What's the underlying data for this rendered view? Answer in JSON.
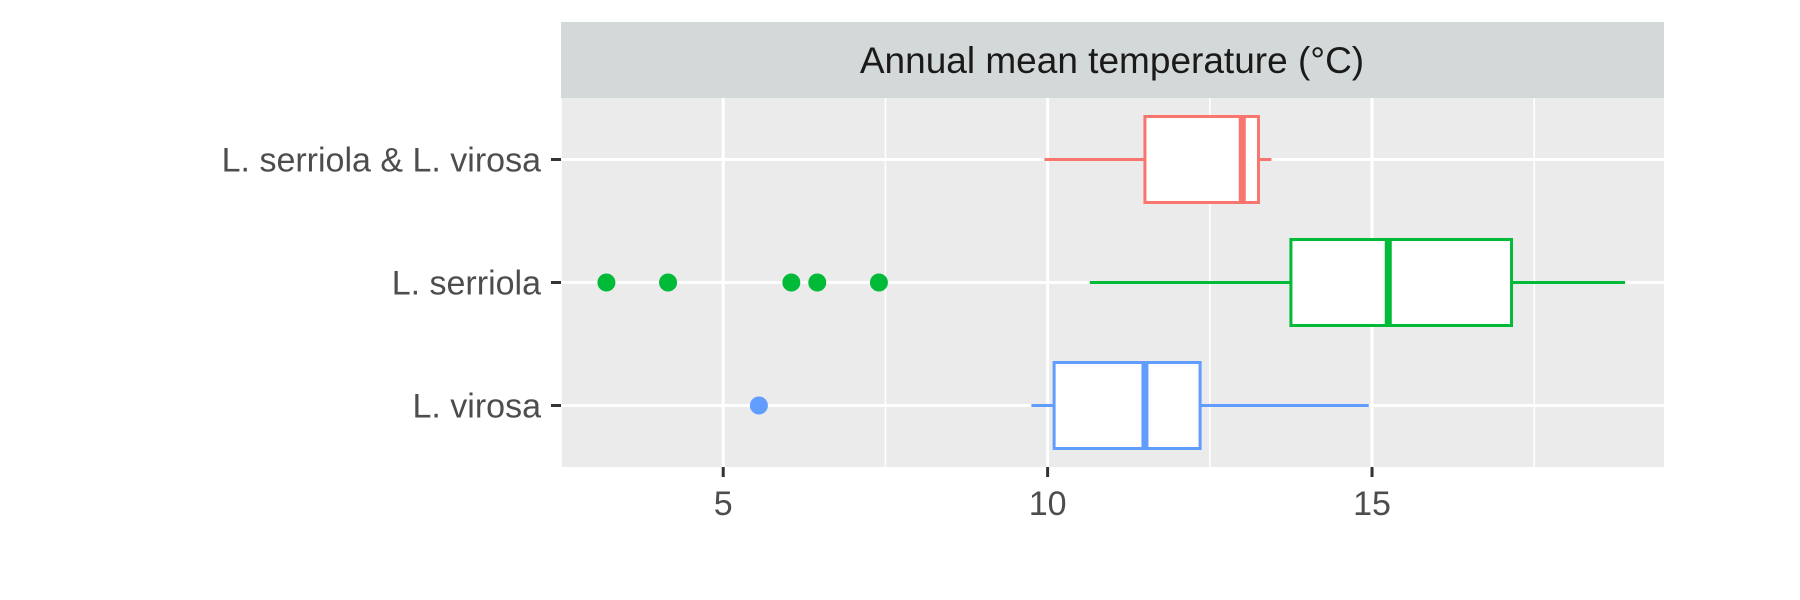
{
  "chart_data": {
    "type": "boxplot",
    "orientation": "horizontal",
    "title": "",
    "xlabel": "",
    "ylabel": "",
    "facet_strip": "Annual mean temperature (°C)",
    "xlim": [
      2.5,
      19.5
    ],
    "xticks": [
      5,
      10,
      15
    ],
    "xtick_labels": [
      "5",
      "10",
      "15"
    ],
    "grid": true,
    "legend": "none",
    "background": "#ebebeb",
    "strip_background": "#d3d9d8",
    "categories": [
      "L. serriola & L. virosa",
      "L. serriola",
      "L. virosa"
    ],
    "series": [
      {
        "name": "L. serriola & L. virosa",
        "color": "#f8766d",
        "whisker_low": 9.95,
        "q1": 11.5,
        "median": 13.0,
        "q3": 13.25,
        "whisker_high": 13.45,
        "outliers": []
      },
      {
        "name": "L. serriola",
        "color": "#00ba38",
        "whisker_low": 10.65,
        "q1": 13.75,
        "median": 15.25,
        "q3": 17.15,
        "whisker_high": 18.9,
        "outliers": [
          3.2,
          4.15,
          6.05,
          6.45,
          7.4
        ]
      },
      {
        "name": "L. virosa",
        "color": "#619cff",
        "whisker_low": 9.75,
        "q1": 10.1,
        "median": 11.5,
        "q3": 12.35,
        "whisker_high": 14.95,
        "outliers": [
          5.55
        ]
      }
    ]
  }
}
